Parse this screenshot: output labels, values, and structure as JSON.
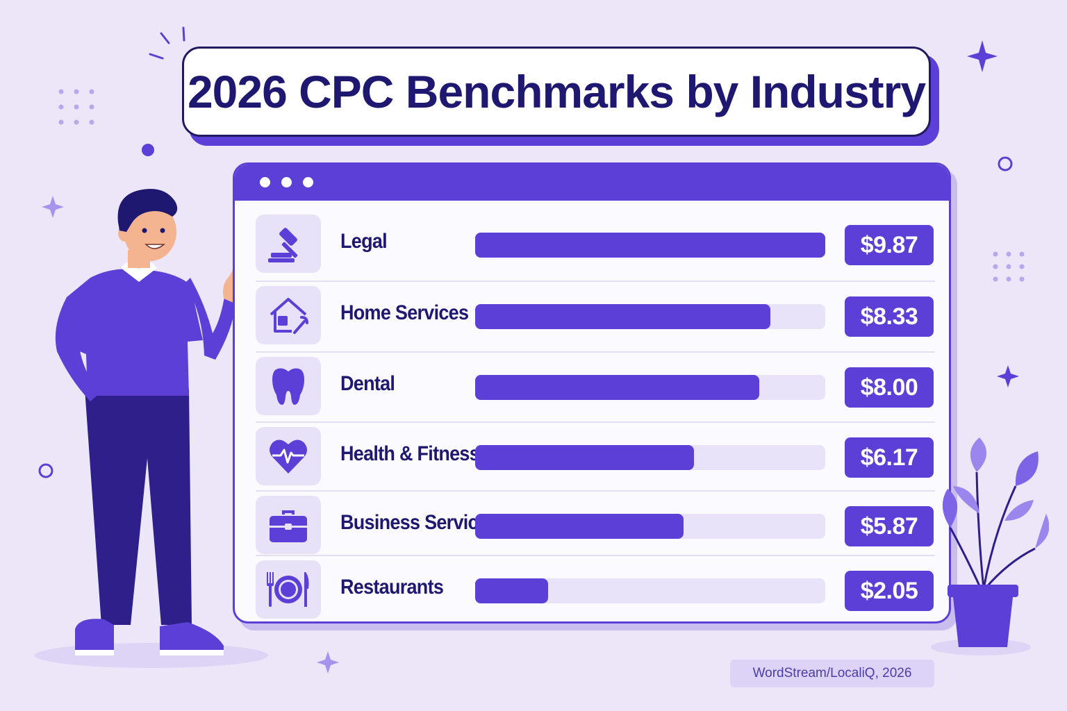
{
  "colors": {
    "background": "#ece6f8",
    "accent": "#5b3fd6",
    "navy": "#1f1870",
    "track": "#e9e3f9"
  },
  "chart_data": {
    "type": "bar",
    "orientation": "horizontal",
    "title": "2026 CPC Benchmarks by Industry",
    "categories": [
      "Legal",
      "Home Services",
      "Dental",
      "Health & Fitness",
      "Business Services",
      "Restaurants"
    ],
    "values": [
      9.87,
      8.33,
      8.0,
      6.17,
      5.87,
      2.05
    ],
    "value_labels": [
      "$9.87",
      "$8.33",
      "$8.00",
      "$6.17",
      "$5.87",
      "$2.05"
    ],
    "icons": [
      "gavel-icon",
      "home-repair-icon",
      "tooth-icon",
      "heartbeat-icon",
      "briefcase-icon",
      "dining-icon"
    ],
    "xlim": [
      0,
      9.87
    ],
    "grid": false,
    "legend": "none"
  },
  "source": "WordStream/LocaliQ, 2026"
}
